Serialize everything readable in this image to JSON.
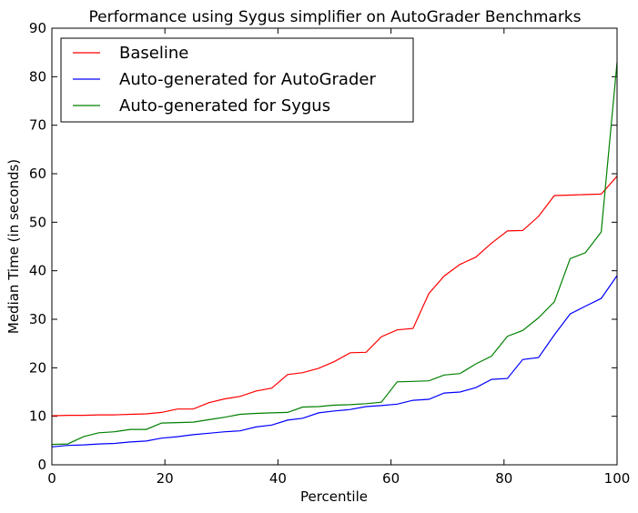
{
  "chart_data": {
    "type": "line",
    "title": "Performance using Sygus simplifier on AutoGrader Benchmarks",
    "xlabel": "Percentile",
    "ylabel": "Median Time (in seconds)",
    "xlim": [
      0,
      100
    ],
    "ylim": [
      0,
      90
    ],
    "xticks": [
      0,
      20,
      40,
      60,
      80,
      100
    ],
    "yticks": [
      0,
      10,
      20,
      30,
      40,
      50,
      60,
      70,
      80,
      90
    ],
    "grid": false,
    "legend_position": "top-left",
    "x": [
      0,
      2.8,
      5.6,
      8.3,
      11.1,
      13.9,
      16.7,
      19.4,
      22.2,
      25.0,
      27.8,
      30.6,
      33.3,
      36.1,
      38.9,
      41.7,
      44.4,
      47.2,
      50.0,
      52.8,
      55.6,
      58.3,
      61.1,
      63.9,
      66.7,
      69.4,
      72.2,
      75.0,
      77.8,
      80.6,
      83.3,
      86.1,
      88.9,
      91.7,
      94.4,
      97.2,
      100
    ],
    "series": [
      {
        "name": "Baseline",
        "color": "#ff0000",
        "values": [
          10.1,
          10.2,
          10.2,
          10.3,
          10.3,
          10.4,
          10.5,
          10.8,
          11.5,
          11.5,
          12.8,
          13.6,
          14.1,
          15.2,
          15.8,
          18.6,
          19.0,
          19.9,
          21.3,
          23.1,
          23.2,
          26.4,
          27.8,
          28.1,
          35.3,
          38.9,
          41.3,
          42.8,
          45.7,
          48.2,
          48.3,
          51.2,
          55.5,
          55.6,
          55.7,
          55.8,
          59.5
        ]
      },
      {
        "name": "Auto-generated for AutoGrader",
        "color": "#0000ff",
        "values": [
          3.7,
          4.0,
          4.1,
          4.3,
          4.4,
          4.7,
          4.9,
          5.5,
          5.8,
          6.2,
          6.5,
          6.8,
          7.0,
          7.8,
          8.2,
          9.2,
          9.6,
          10.7,
          11.1,
          11.4,
          12.0,
          12.2,
          12.5,
          13.3,
          13.5,
          14.8,
          15.0,
          15.9,
          17.6,
          17.8,
          21.7,
          22.1,
          26.8,
          31.1,
          32.7,
          34.3,
          39.0
        ]
      },
      {
        "name": "Auto-generated for Sygus",
        "color": "#008000",
        "values": [
          4.2,
          4.3,
          5.8,
          6.6,
          6.8,
          7.3,
          7.3,
          8.6,
          8.7,
          8.8,
          9.3,
          9.8,
          10.4,
          10.6,
          10.7,
          10.8,
          11.9,
          12.0,
          12.3,
          12.4,
          12.6,
          12.9,
          17.1,
          17.2,
          17.3,
          18.5,
          18.8,
          20.8,
          22.4,
          26.5,
          27.7,
          30.3,
          33.6,
          42.5,
          43.7,
          48.0,
          83.0
        ]
      }
    ]
  }
}
